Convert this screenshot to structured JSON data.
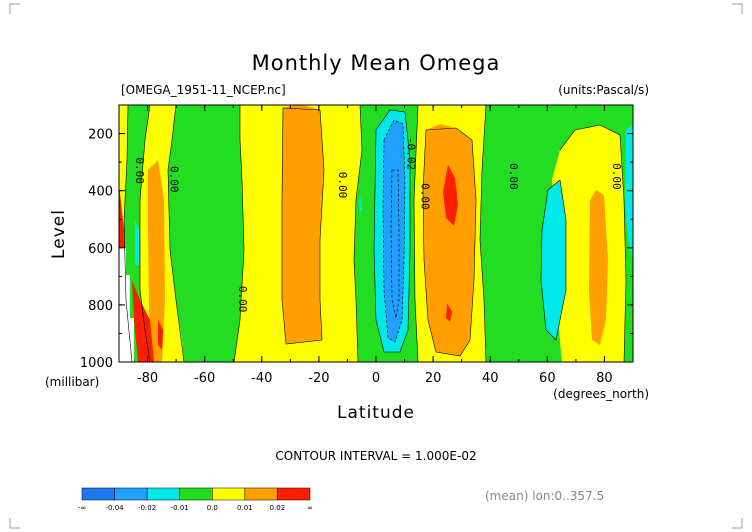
{
  "page": {
    "title": "Monthly Mean Omega",
    "file_label": "[OMEGA_1951-11_NCEP.nc]",
    "units_label": "(units:Pascal/s)",
    "contour_interval": "CONTOUR INTERVAL = 1.000E-02",
    "mean_info": "(mean) lon:0..357.5"
  },
  "colors": {
    "c_m04": "#1e78f0",
    "c_m02": "#20a0ff",
    "c_m01": "#00e8e8",
    "c_00": "#22dd22",
    "c_01": "#ffff00",
    "c_02": "#ffa000",
    "c_03": "#ff1e00",
    "missing": "#ffffff"
  },
  "chart_data": {
    "type": "contour",
    "title": "Monthly Mean Omega",
    "xlabel": "Latitude",
    "xunit_label": "(degrees_north)",
    "ylabel": "Level",
    "yunit_label": "(millibar)",
    "xlim": [
      -90,
      90
    ],
    "ylim": [
      1000,
      100
    ],
    "x_ticks": [
      "-80",
      "-60",
      "-40",
      "-20",
      "0",
      "20",
      "40",
      "60",
      "80"
    ],
    "x_tick_values": [
      -80,
      -60,
      -40,
      -20,
      0,
      20,
      40,
      60,
      80
    ],
    "y_ticks": [
      "200",
      "400",
      "600",
      "800",
      "1000"
    ],
    "y_tick_values": [
      200,
      400,
      600,
      800,
      1000
    ],
    "contour_labels": [
      {
        "text": "0.00",
        "lat": -84,
        "lev": 330
      },
      {
        "text": "0.00",
        "lat": -72,
        "lev": 360
      },
      {
        "text": "0.00",
        "lat": -48,
        "lev": 780
      },
      {
        "text": "0.00",
        "lat": -13,
        "lev": 380
      },
      {
        "text": "-0.02",
        "lat": 11,
        "lev": 270
      },
      {
        "text": "0.00",
        "lat": 16,
        "lev": 420
      },
      {
        "text": "0.00",
        "lat": 47,
        "lev": 350
      },
      {
        "text": "0.00",
        "lat": 83,
        "lev": 350
      }
    ],
    "colorbar": {
      "bins": [
        {
          "color": "#1e78f0"
        },
        {
          "color": "#20a0ff"
        },
        {
          "color": "#00e8e8"
        },
        {
          "color": "#22dd22"
        },
        {
          "color": "#ffff00"
        },
        {
          "color": "#ffa000"
        },
        {
          "color": "#ff1e00"
        }
      ],
      "tick_labels": [
        "-∞",
        "-0.04",
        "-0.02",
        "-0.01",
        "0.0",
        "0.01",
        "0.02",
        "∞"
      ]
    }
  }
}
